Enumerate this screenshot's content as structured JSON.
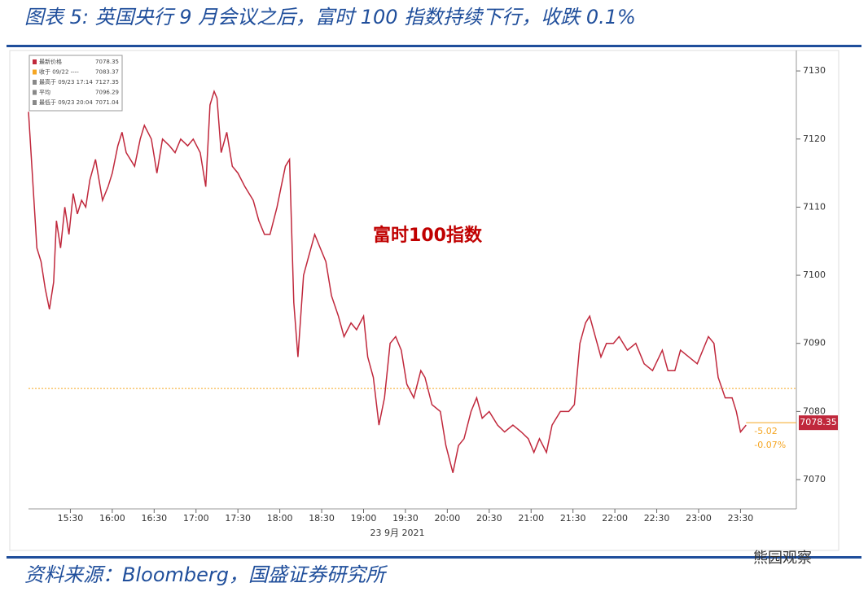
{
  "chart_data": {
    "type": "line",
    "title": "图表 5:  英国央行 9 月会议之后，富时 100 指数持续下行，收跌 0.1%",
    "annotation": "富时100指数",
    "date_label": "23 9月 2021",
    "source": "资料来源：Bloomberg，国盛证券研究所",
    "watermark": "熊园观察",
    "legend": [
      {
        "label": "最新价格",
        "value": "7078.35"
      },
      {
        "label": "收于 09/22 ----",
        "value": "7083.37"
      },
      {
        "label": "最高于 09/23 17:14",
        "value": "7127.35"
      },
      {
        "label": "平均",
        "value": "7096.29"
      },
      {
        "label": "最低于 09/23 20:04",
        "value": "7071.04"
      }
    ],
    "reference": {
      "value": 7083.37,
      "color": "#f5a623"
    },
    "last_price": {
      "value": 7078.35,
      "change": "-5.02",
      "change_pct": "-0.07%"
    },
    "x": [
      900,
      906,
      909,
      912,
      915,
      918,
      920,
      923,
      926,
      929,
      932,
      935,
      938,
      941,
      944,
      948,
      953,
      957,
      960,
      964,
      967,
      970,
      976,
      980,
      983,
      988,
      992,
      996,
      1001,
      1005,
      1009,
      1014,
      1018,
      1023,
      1027,
      1030,
      1033,
      1035,
      1038,
      1042,
      1046,
      1050,
      1055,
      1061,
      1065,
      1069,
      1073,
      1078,
      1081,
      1084,
      1087,
      1090,
      1093,
      1097,
      1101,
      1105,
      1109,
      1113,
      1117,
      1122,
      1126,
      1131,
      1135,
      1140,
      1143,
      1147,
      1151,
      1155,
      1159,
      1163,
      1167,
      1171,
      1176,
      1181,
      1184,
      1189,
      1195,
      1199,
      1204,
      1208,
      1212,
      1217,
      1221,
      1225,
      1230,
      1236,
      1241,
      1247,
      1253,
      1258,
      1262,
      1266,
      1271,
      1275,
      1281,
      1287,
      1291,
      1295,
      1299,
      1302,
      1306,
      1310,
      1314,
      1319,
      1323,
      1329,
      1335,
      1341,
      1347,
      1354,
      1358,
      1363,
      1367,
      1373,
      1379,
      1383,
      1387,
      1391,
      1394,
      1399,
      1404,
      1407,
      1410,
      1414
    ],
    "series": [
      {
        "name": "富时100指数",
        "color": "#c0283c",
        "values": [
          7124,
          7104,
          7102,
          7098,
          7095,
          7099,
          7108,
          7104,
          7110,
          7106,
          7112,
          7109,
          7111,
          7110,
          7114,
          7117,
          7111,
          7113,
          7115,
          7119,
          7121,
          7118,
          7116,
          7120,
          7122,
          7120,
          7115,
          7120,
          7119,
          7118,
          7120,
          7119,
          7120,
          7118,
          7113,
          7125,
          7127,
          7126,
          7118,
          7121,
          7116,
          7115,
          7113,
          7111,
          7108,
          7106,
          7106,
          7110,
          7113,
          7116,
          7117,
          7096,
          7088,
          7100,
          7103,
          7106,
          7104,
          7102,
          7097,
          7094,
          7091,
          7093,
          7092,
          7094,
          7088,
          7085,
          7078,
          7082,
          7090,
          7091,
          7089,
          7084,
          7082,
          7086,
          7085,
          7081,
          7080,
          7075,
          7071,
          7075,
          7076,
          7080,
          7082,
          7079,
          7080,
          7078,
          7077,
          7078,
          7077,
          7076,
          7074,
          7076,
          7074,
          7078,
          7080,
          7080,
          7081,
          7090,
          7093,
          7094,
          7091,
          7088,
          7090,
          7090,
          7091,
          7089,
          7090,
          7087,
          7086,
          7089,
          7086,
          7086,
          7089,
          7088,
          7087,
          7089,
          7091,
          7090,
          7085,
          7082,
          7082,
          7080,
          7077,
          7078
        ]
      }
    ],
    "xlim": [
      900,
      1450
    ],
    "xticks": [
      {
        "value": 930,
        "label": "15:30"
      },
      {
        "value": 960,
        "label": "16:00"
      },
      {
        "value": 990,
        "label": "16:30"
      },
      {
        "value": 1020,
        "label": "17:00"
      },
      {
        "value": 1050,
        "label": "17:30"
      },
      {
        "value": 1080,
        "label": "18:00"
      },
      {
        "value": 1110,
        "label": "18:30"
      },
      {
        "value": 1140,
        "label": "19:00"
      },
      {
        "value": 1170,
        "label": "19:30"
      },
      {
        "value": 1200,
        "label": "20:00"
      },
      {
        "value": 1230,
        "label": "20:30"
      },
      {
        "value": 1260,
        "label": "21:00"
      },
      {
        "value": 1290,
        "label": "21:30"
      },
      {
        "value": 1320,
        "label": "22:00"
      },
      {
        "value": 1350,
        "label": "22:30"
      },
      {
        "value": 1380,
        "label": "23:00"
      },
      {
        "value": 1410,
        "label": "23:30"
      }
    ],
    "ylim": [
      7065.7,
      7133
    ],
    "yticks": [
      7070,
      7080,
      7090,
      7100,
      7110,
      7120,
      7130
    ]
  }
}
